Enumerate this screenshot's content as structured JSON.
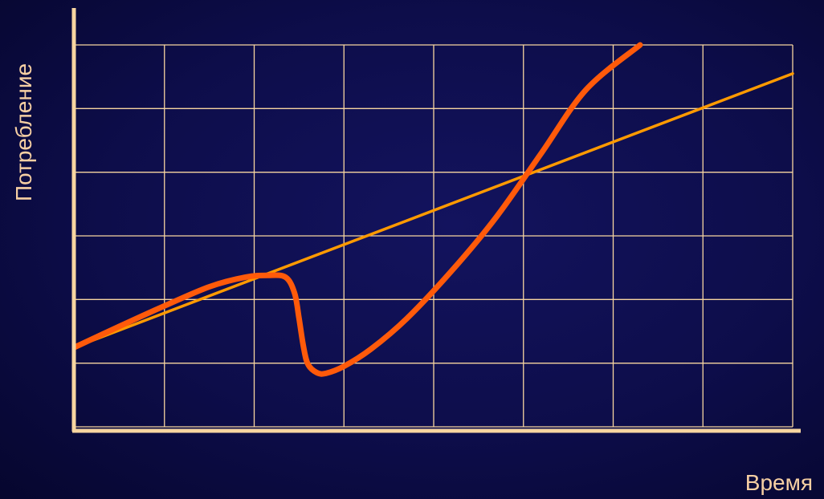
{
  "colors": {
    "grid": "#f7d5a0",
    "axis": "#f7d5a0",
    "label": "#f6cfa3",
    "trend": "#ff9a00",
    "actual": "#ff5a0a"
  },
  "chart_data": {
    "type": "line",
    "title": "",
    "xlabel": "Время",
    "ylabel": "Потребление",
    "grid": true,
    "legend": "none",
    "xlim": [
      0,
      8
    ],
    "ylim": [
      0,
      6
    ],
    "xticks": [
      0,
      1,
      2,
      3,
      4,
      5,
      6,
      7,
      8
    ],
    "yticks": [
      0,
      1,
      2,
      3,
      4,
      5,
      6
    ],
    "series": [
      {
        "key": "trend",
        "style": "thin",
        "x": [
          0,
          8
        ],
        "y": [
          1.25,
          5.55
        ]
      },
      {
        "key": "actual",
        "style": "thick",
        "x": [
          0,
          0.5,
          1.0,
          1.5,
          1.9,
          2.15,
          2.35,
          2.45,
          2.5,
          2.55,
          2.6,
          2.7,
          2.8,
          3.0,
          3.3,
          3.7,
          4.2,
          4.7,
          5.2,
          5.7,
          6.3
        ],
        "y": [
          1.25,
          1.58,
          1.9,
          2.2,
          2.35,
          2.38,
          2.35,
          2.1,
          1.7,
          1.25,
          0.98,
          0.85,
          0.84,
          0.95,
          1.22,
          1.7,
          2.45,
          3.3,
          4.3,
          5.3,
          6.0
        ]
      }
    ]
  }
}
